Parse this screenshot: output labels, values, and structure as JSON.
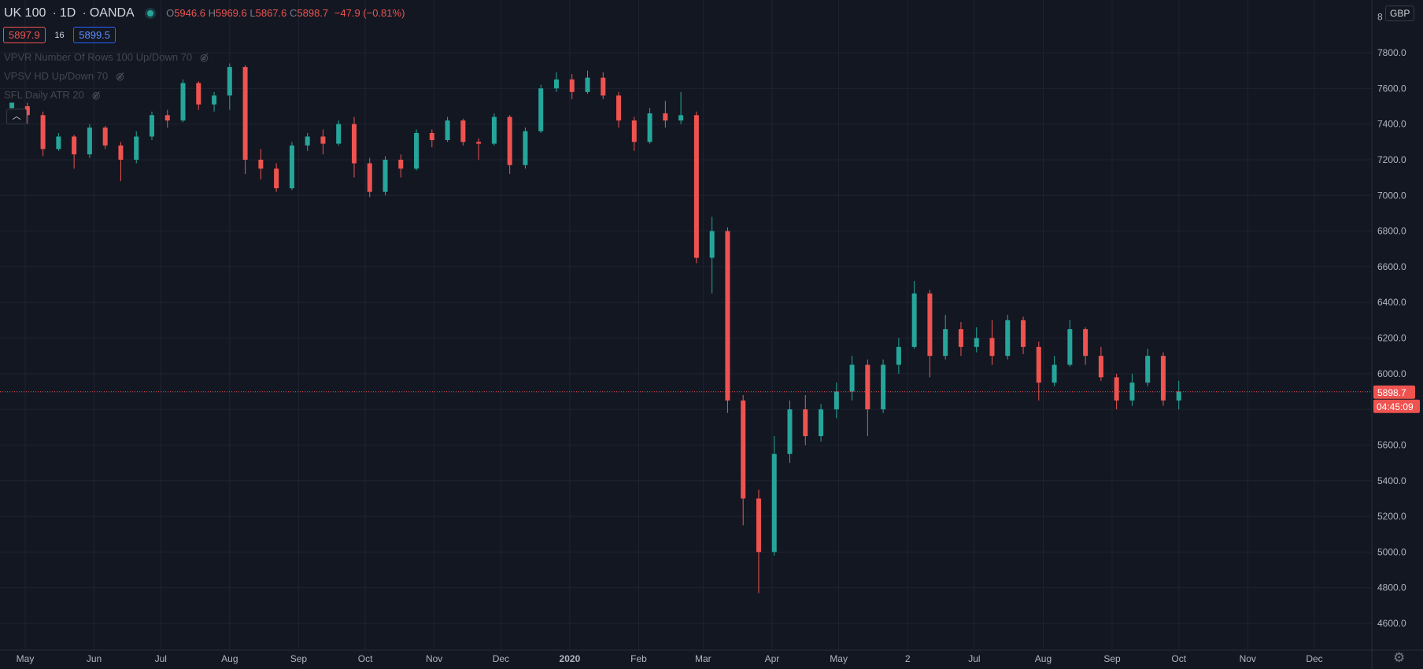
{
  "legend": {
    "symbol": "UK 100",
    "interval": "1D",
    "broker": "OANDA",
    "o_label": "O",
    "open": "5946.6",
    "h_label": "H",
    "high": "5969.6",
    "l_label": "L",
    "low": "5867.6",
    "c_label": "C",
    "close": "5898.7",
    "change": "−47.9 (−0.81%)"
  },
  "bid": "5897.9",
  "spread": "16",
  "ask": "5899.5",
  "indicators": [
    "VPVR Number Of Rows 100 Up/Down 70",
    "VPSV HD Up/Down 70",
    "SFL Daily ATR 20"
  ],
  "currency": "GBP",
  "price_label": "5898.7",
  "countdown": "04:45:09",
  "colors": {
    "background": "#131722",
    "up": "#26a69a",
    "down": "#ef5350",
    "grid": "#1f2331",
    "text": "#b2b5be",
    "last_line": "#ef5350"
  },
  "icons": {
    "collapse": "chevron-up-icon",
    "indicator_hidden": "eye-off-icon",
    "settings": "gear-icon",
    "status": "live-dot-icon"
  },
  "chart_data": {
    "type": "candlestick",
    "interval": "1D",
    "ylim": [
      4500,
      8000
    ],
    "y_ticks": [
      4600,
      4800,
      5000,
      5200,
      5400,
      5600,
      5800,
      6000,
      6200,
      6400,
      6600,
      6800,
      7000,
      7200,
      7400,
      7600,
      7800
    ],
    "y_tick_labels": [
      "4600.0",
      "4800.0",
      "5000.0",
      "5200.0",
      "5400.0",
      "5600.0",
      "5800.0",
      "6000.0",
      "6200.0",
      "6400.0",
      "6600.0",
      "6800.0",
      "7000.0",
      "7200.0",
      "7400.0",
      "7600.0",
      "7800.0"
    ],
    "x_labels": [
      {
        "label": "May",
        "date": "2019-05-01",
        "bold": false
      },
      {
        "label": "Jun",
        "date": "2019-06-01",
        "bold": false
      },
      {
        "label": "Jul",
        "date": "2019-07-01",
        "bold": false
      },
      {
        "label": "Aug",
        "date": "2019-08-01",
        "bold": false
      },
      {
        "label": "Sep",
        "date": "2019-09-01",
        "bold": false
      },
      {
        "label": "Oct",
        "date": "2019-10-01",
        "bold": false
      },
      {
        "label": "Nov",
        "date": "2019-11-01",
        "bold": false
      },
      {
        "label": "Dec",
        "date": "2019-12-01",
        "bold": false
      },
      {
        "label": "2020",
        "date": "2020-01-01",
        "bold": true
      },
      {
        "label": "Feb",
        "date": "2020-02-01",
        "bold": false
      },
      {
        "label": "Mar",
        "date": "2020-03-01",
        "bold": false
      },
      {
        "label": "Apr",
        "date": "2020-04-01",
        "bold": false
      },
      {
        "label": "May",
        "date": "2020-05-01",
        "bold": false
      },
      {
        "label": "2",
        "date": "2020-06-01",
        "bold": false
      },
      {
        "label": "Jul",
        "date": "2020-07-01",
        "bold": false
      },
      {
        "label": "Aug",
        "date": "2020-08-01",
        "bold": false
      },
      {
        "label": "Sep",
        "date": "2020-09-01",
        "bold": false
      },
      {
        "label": "Oct",
        "date": "2020-10-01",
        "bold": false
      },
      {
        "label": "Nov",
        "date": "2020-11-01",
        "bold": false
      },
      {
        "label": "Dec",
        "date": "2020-12-01",
        "bold": false
      }
    ],
    "last_price": 5898.7,
    "candles": [
      [
        "2019-04-25",
        7490,
        7520,
        7470,
        7500
      ],
      [
        "2019-05-02",
        7500,
        7450,
        7400,
        7520
      ],
      [
        "2019-05-09",
        7450,
        7260,
        7220,
        7470
      ],
      [
        "2019-05-16",
        7260,
        7330,
        7250,
        7350
      ],
      [
        "2019-05-23",
        7330,
        7230,
        7150,
        7340
      ],
      [
        "2019-05-30",
        7230,
        7380,
        7210,
        7400
      ],
      [
        "2019-06-06",
        7380,
        7280,
        7260,
        7390
      ],
      [
        "2019-06-13",
        7280,
        7200,
        7080,
        7300
      ],
      [
        "2019-06-20",
        7200,
        7330,
        7180,
        7360
      ],
      [
        "2019-06-27",
        7330,
        7450,
        7310,
        7470
      ],
      [
        "2019-07-04",
        7450,
        7420,
        7380,
        7480
      ],
      [
        "2019-07-11",
        7420,
        7630,
        7410,
        7650
      ],
      [
        "2019-07-18",
        7630,
        7510,
        7480,
        7640
      ],
      [
        "2019-07-25",
        7510,
        7560,
        7470,
        7580
      ],
      [
        "2019-08-01",
        7560,
        7720,
        7480,
        7740
      ],
      [
        "2019-08-08",
        7720,
        7200,
        7120,
        7730
      ],
      [
        "2019-08-15",
        7200,
        7150,
        7090,
        7260
      ],
      [
        "2019-08-22",
        7150,
        7040,
        7020,
        7180
      ],
      [
        "2019-08-29",
        7040,
        7280,
        7030,
        7300
      ],
      [
        "2019-09-05",
        7280,
        7330,
        7250,
        7350
      ],
      [
        "2019-09-12",
        7330,
        7290,
        7230,
        7370
      ],
      [
        "2019-09-19",
        7290,
        7400,
        7280,
        7420
      ],
      [
        "2019-09-26",
        7400,
        7180,
        7100,
        7440
      ],
      [
        "2019-10-03",
        7180,
        7020,
        6990,
        7210
      ],
      [
        "2019-10-10",
        7020,
        7200,
        7000,
        7220
      ],
      [
        "2019-10-17",
        7200,
        7150,
        7100,
        7230
      ],
      [
        "2019-10-24",
        7150,
        7350,
        7140,
        7370
      ],
      [
        "2019-10-31",
        7350,
        7310,
        7270,
        7370
      ],
      [
        "2019-11-07",
        7310,
        7420,
        7300,
        7440
      ],
      [
        "2019-11-14",
        7420,
        7300,
        7280,
        7430
      ],
      [
        "2019-11-21",
        7300,
        7290,
        7200,
        7320
      ],
      [
        "2019-11-28",
        7290,
        7440,
        7280,
        7460
      ],
      [
        "2019-12-05",
        7440,
        7170,
        7120,
        7450
      ],
      [
        "2019-12-12",
        7170,
        7360,
        7150,
        7380
      ],
      [
        "2019-12-19",
        7360,
        7600,
        7350,
        7620
      ],
      [
        "2019-12-26",
        7600,
        7650,
        7580,
        7690
      ],
      [
        "2020-01-02",
        7650,
        7580,
        7540,
        7680
      ],
      [
        "2020-01-09",
        7580,
        7660,
        7570,
        7700
      ],
      [
        "2020-01-16",
        7660,
        7560,
        7540,
        7690
      ],
      [
        "2020-01-23",
        7560,
        7420,
        7380,
        7580
      ],
      [
        "2020-01-30",
        7420,
        7300,
        7250,
        7440
      ],
      [
        "2020-02-06",
        7300,
        7460,
        7290,
        7490
      ],
      [
        "2020-02-13",
        7460,
        7420,
        7380,
        7530
      ],
      [
        "2020-02-20",
        7420,
        7450,
        7400,
        7580
      ],
      [
        "2020-02-27",
        7450,
        6650,
        6620,
        7470
      ],
      [
        "2020-03-05",
        6650,
        6800,
        6450,
        6880
      ],
      [
        "2020-03-12",
        6800,
        5850,
        5780,
        6820
      ],
      [
        "2020-03-19",
        5850,
        5300,
        5150,
        5880
      ],
      [
        "2020-03-26",
        5300,
        5000,
        4770,
        5350
      ],
      [
        "2020-04-02",
        5000,
        5550,
        4980,
        5650
      ],
      [
        "2020-04-09",
        5550,
        5800,
        5500,
        5850
      ],
      [
        "2020-04-16",
        5800,
        5650,
        5600,
        5880
      ],
      [
        "2020-04-23",
        5650,
        5800,
        5620,
        5830
      ],
      [
        "2020-04-30",
        5800,
        5900,
        5750,
        5950
      ],
      [
        "2020-05-07",
        5900,
        6050,
        5850,
        6100
      ],
      [
        "2020-05-14",
        6050,
        5800,
        5650,
        6080
      ],
      [
        "2020-05-21",
        5800,
        6050,
        5780,
        6080
      ],
      [
        "2020-05-28",
        6050,
        6150,
        6000,
        6200
      ],
      [
        "2020-06-04",
        6150,
        6450,
        6140,
        6520
      ],
      [
        "2020-06-11",
        6450,
        6100,
        5980,
        6470
      ],
      [
        "2020-06-18",
        6100,
        6250,
        6080,
        6330
      ],
      [
        "2020-06-25",
        6250,
        6150,
        6100,
        6290
      ],
      [
        "2020-07-02",
        6150,
        6200,
        6120,
        6260
      ],
      [
        "2020-07-09",
        6200,
        6100,
        6050,
        6300
      ],
      [
        "2020-07-16",
        6100,
        6300,
        6080,
        6330
      ],
      [
        "2020-07-23",
        6300,
        6150,
        6110,
        6320
      ],
      [
        "2020-07-30",
        6150,
        5950,
        5850,
        6180
      ],
      [
        "2020-08-06",
        5950,
        6050,
        5930,
        6100
      ],
      [
        "2020-08-13",
        6050,
        6250,
        6040,
        6300
      ],
      [
        "2020-08-20",
        6250,
        6100,
        6050,
        6260
      ],
      [
        "2020-08-27",
        6100,
        5980,
        5960,
        6150
      ],
      [
        "2020-09-03",
        5980,
        5850,
        5800,
        6000
      ],
      [
        "2020-09-10",
        5850,
        5950,
        5820,
        6000
      ],
      [
        "2020-09-17",
        5950,
        6100,
        5930,
        6140
      ],
      [
        "2020-09-24",
        6100,
        5850,
        5820,
        6120
      ],
      [
        "2020-10-01",
        5850,
        5900,
        5800,
        5960
      ]
    ]
  }
}
